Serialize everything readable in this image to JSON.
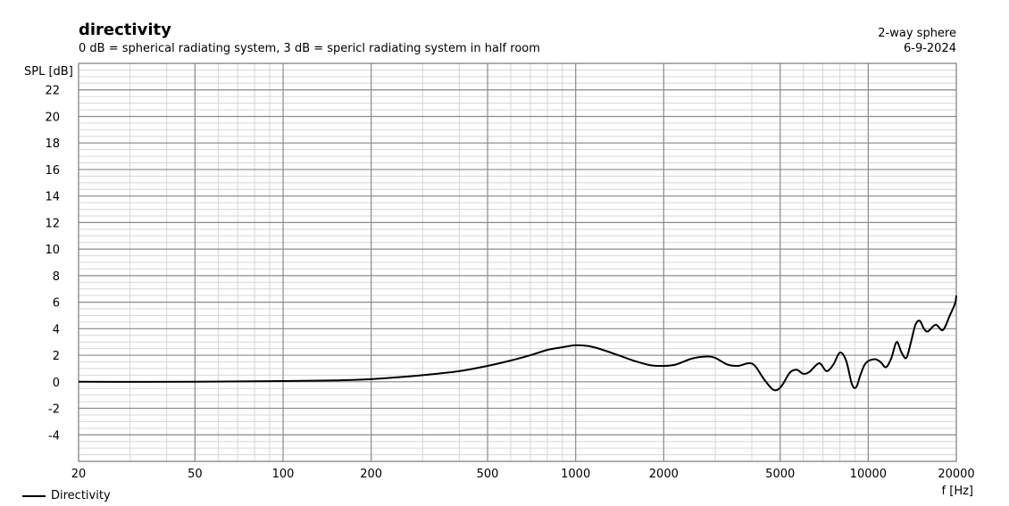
{
  "header": {
    "title": "directivity",
    "subtitle": "0 dB = spherical radiating system, 3 dB = spericl radiating system in half room",
    "right_line1": "2-way sphere",
    "right_line2": "6-9-2024"
  },
  "chart_data": {
    "type": "line",
    "title": "directivity",
    "subtitle": "0 dB = spherical radiating system, 3 dB = spericl radiating system in half room",
    "xlabel": "f [Hz]",
    "ylabel": "SPL [dB]",
    "xscale": "log",
    "xlim": [
      20,
      20000
    ],
    "ylim": [
      -6,
      24
    ],
    "x_ticks": [
      20,
      50,
      100,
      200,
      500,
      1000,
      2000,
      5000,
      10000,
      20000
    ],
    "x_tick_labels": [
      "20",
      "50",
      "100",
      "200",
      "500",
      "1000",
      "2000",
      "5000",
      "10000",
      "20000"
    ],
    "y_ticks": [
      -4,
      -2,
      0,
      2,
      4,
      6,
      8,
      10,
      12,
      14,
      16,
      18,
      20,
      22
    ],
    "y_tick_labels": [
      "-4",
      "-2",
      "0",
      "2",
      "4",
      "6",
      "8",
      "10",
      "12",
      "14",
      "16",
      "18",
      "20",
      "22"
    ],
    "grid": true,
    "legend_position": "bottom-left",
    "series": [
      {
        "name": "Directivity",
        "color": "#000000",
        "x": [
          20,
          50,
          100,
          150,
          200,
          250,
          300,
          400,
          500,
          600,
          700,
          800,
          900,
          1000,
          1100,
          1200,
          1400,
          1600,
          1800,
          2000,
          2200,
          2500,
          2800,
          3000,
          3300,
          3600,
          3900,
          4100,
          4400,
          4700,
          4900,
          5100,
          5400,
          5700,
          6000,
          6300,
          6800,
          7200,
          7600,
          8000,
          8400,
          8800,
          9100,
          9400,
          9800,
          10500,
          11000,
          11500,
          12000,
          12500,
          13000,
          13500,
          14000,
          14500,
          15000,
          15500,
          16000,
          17000,
          18000,
          19000,
          19800,
          20000
        ],
        "y": [
          0,
          0,
          0.05,
          0.1,
          0.2,
          0.35,
          0.5,
          0.8,
          1.2,
          1.6,
          2.0,
          2.4,
          2.6,
          2.75,
          2.7,
          2.5,
          2.0,
          1.55,
          1.25,
          1.2,
          1.3,
          1.75,
          1.9,
          1.8,
          1.3,
          1.2,
          1.4,
          1.2,
          0.2,
          -0.55,
          -0.6,
          -0.2,
          0.7,
          0.9,
          0.6,
          0.75,
          1.4,
          0.8,
          1.3,
          2.2,
          1.6,
          -0.2,
          -0.4,
          0.5,
          1.4,
          1.7,
          1.5,
          1.1,
          1.8,
          3.0,
          2.2,
          1.8,
          3.0,
          4.3,
          4.6,
          4.0,
          3.8,
          4.3,
          3.9,
          5.0,
          5.9,
          6.5
        ]
      }
    ]
  }
}
